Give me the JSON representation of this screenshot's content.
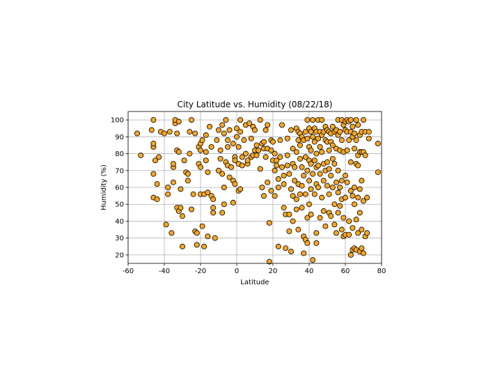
{
  "chart_data": {
    "type": "scatter",
    "title": "City Latitude vs. Humidity (08/22/18)",
    "xlabel": "Latitude",
    "ylabel": "Humidity (%)",
    "xlim": [
      -60,
      80
    ],
    "ylim": [
      15,
      105
    ],
    "xticks": [
      -60,
      -40,
      -20,
      0,
      20,
      40,
      60,
      80
    ],
    "yticks": [
      20,
      30,
      40,
      50,
      60,
      70,
      80,
      90,
      100
    ],
    "grid": true,
    "marker_color": "#f5a623",
    "marker_edge_color": "#000000",
    "points": [
      [
        -55,
        92
      ],
      [
        -53,
        79
      ],
      [
        -47,
        94
      ],
      [
        -46,
        100
      ],
      [
        -46,
        84
      ],
      [
        -46,
        86
      ],
      [
        -46,
        68
      ],
      [
        -45,
        76
      ],
      [
        -46,
        54
      ],
      [
        -44,
        62
      ],
      [
        -44,
        53
      ],
      [
        -43,
        78
      ],
      [
        -42,
        93
      ],
      [
        -40,
        92
      ],
      [
        -39,
        38
      ],
      [
        -38,
        56
      ],
      [
        -38,
        60
      ],
      [
        -37,
        93
      ],
      [
        -36,
        33
      ],
      [
        -35,
        72
      ],
      [
        -35,
        74
      ],
      [
        -35,
        63
      ],
      [
        -34,
        98
      ],
      [
        -34,
        100
      ],
      [
        -33,
        92
      ],
      [
        -33,
        82
      ],
      [
        -32,
        99
      ],
      [
        -32,
        81
      ],
      [
        -33,
        48
      ],
      [
        -32,
        46
      ],
      [
        -31,
        59
      ],
      [
        -31,
        48
      ],
      [
        -30,
        43
      ],
      [
        -30,
        25
      ],
      [
        -29,
        76
      ],
      [
        -28,
        69
      ],
      [
        -27,
        68
      ],
      [
        -27,
        64
      ],
      [
        -26,
        93
      ],
      [
        -26,
        80
      ],
      [
        -25,
        100
      ],
      [
        -25,
        47
      ],
      [
        -24,
        56
      ],
      [
        -23,
        92
      ],
      [
        -23,
        34
      ],
      [
        -22,
        33
      ],
      [
        -22,
        26
      ],
      [
        -21,
        84
      ],
      [
        -21,
        74
      ],
      [
        -20,
        86
      ],
      [
        -20,
        82
      ],
      [
        -20,
        72
      ],
      [
        -20,
        56
      ],
      [
        -19,
        88
      ],
      [
        -19,
        37
      ],
      [
        -18,
        25
      ],
      [
        -18,
        56
      ],
      [
        -17,
        91
      ],
      [
        -17,
        81
      ],
      [
        -17,
        76
      ],
      [
        -16,
        69
      ],
      [
        -16,
        57
      ],
      [
        -16,
        31
      ],
      [
        -15,
        96
      ],
      [
        -14,
        84
      ],
      [
        -14,
        55
      ],
      [
        -13,
        53
      ],
      [
        -13,
        48
      ],
      [
        -13,
        45
      ],
      [
        -12,
        30
      ],
      [
        -11,
        88
      ],
      [
        -10,
        94
      ],
      [
        -10,
        70
      ],
      [
        -9,
        82
      ],
      [
        -9,
        77
      ],
      [
        -8,
        45
      ],
      [
        -8,
        97
      ],
      [
        -8,
        68
      ],
      [
        -7,
        92
      ],
      [
        -7,
        50
      ],
      [
        -7,
        60
      ],
      [
        -6,
        100
      ],
      [
        -6,
        75
      ],
      [
        -5,
        88
      ],
      [
        -5,
        84
      ],
      [
        -5,
        73
      ],
      [
        -4,
        94
      ],
      [
        -4,
        66
      ],
      [
        -3,
        72
      ],
      [
        -2,
        86
      ],
      [
        -2,
        64
      ],
      [
        -2,
        51
      ],
      [
        -1,
        78
      ],
      [
        -1,
        76
      ],
      [
        -1,
        62
      ],
      [
        0,
        95
      ],
      [
        0,
        90
      ],
      [
        1,
        84
      ],
      [
        1,
        74
      ],
      [
        1,
        58
      ],
      [
        2,
        100
      ],
      [
        2,
        93
      ],
      [
        2,
        59
      ],
      [
        3,
        78
      ],
      [
        3,
        73
      ],
      [
        4,
        88
      ],
      [
        5,
        97
      ],
      [
        5,
        80
      ],
      [
        6,
        74
      ],
      [
        6,
        76
      ],
      [
        7,
        98
      ],
      [
        8,
        89
      ],
      [
        8,
        78
      ],
      [
        9,
        96
      ],
      [
        9,
        79
      ],
      [
        10,
        94
      ],
      [
        10,
        82
      ],
      [
        11,
        85
      ],
      [
        11,
        79
      ],
      [
        12,
        82
      ],
      [
        13,
        100
      ],
      [
        13,
        71
      ],
      [
        14,
        86
      ],
      [
        14,
        60
      ],
      [
        15,
        87
      ],
      [
        15,
        83
      ],
      [
        15,
        55
      ],
      [
        16,
        94
      ],
      [
        16,
        78
      ],
      [
        17,
        97
      ],
      [
        17,
        83
      ],
      [
        17,
        63
      ],
      [
        18,
        39
      ],
      [
        18,
        16
      ],
      [
        19,
        82
      ],
      [
        19,
        88
      ],
      [
        19,
        58
      ],
      [
        20,
        87
      ],
      [
        20,
        76
      ],
      [
        21,
        80
      ],
      [
        21,
        70
      ],
      [
        21,
        55
      ],
      [
        22,
        76
      ],
      [
        22,
        73
      ],
      [
        23,
        65
      ],
      [
        23,
        60
      ],
      [
        23,
        25
      ],
      [
        24,
        78
      ],
      [
        24,
        88
      ],
      [
        25,
        97
      ],
      [
        25,
        72
      ],
      [
        26,
        67
      ],
      [
        26,
        62
      ],
      [
        26,
        48
      ],
      [
        27,
        44
      ],
      [
        27,
        24
      ],
      [
        28,
        89
      ],
      [
        28,
        79
      ],
      [
        28,
        73
      ],
      [
        29,
        68
      ],
      [
        29,
        44
      ],
      [
        29,
        34
      ],
      [
        30,
        94
      ],
      [
        30,
        59
      ],
      [
        30,
        22
      ],
      [
        31,
        83
      ],
      [
        31,
        74
      ],
      [
        31,
        55
      ],
      [
        31,
        40
      ],
      [
        32,
        72
      ],
      [
        32,
        64
      ],
      [
        33,
        95
      ],
      [
        33,
        81
      ],
      [
        33,
        53
      ],
      [
        33,
        47
      ],
      [
        34,
        93
      ],
      [
        34,
        88
      ],
      [
        34,
        62
      ],
      [
        34,
        35
      ],
      [
        35,
        92
      ],
      [
        35,
        85
      ],
      [
        35,
        77
      ],
      [
        35,
        56
      ],
      [
        36,
        90
      ],
      [
        36,
        72
      ],
      [
        36,
        61
      ],
      [
        36,
        48
      ],
      [
        37,
        88
      ],
      [
        37,
        67
      ],
      [
        37,
        31
      ],
      [
        37,
        21
      ],
      [
        38,
        93
      ],
      [
        38,
        78
      ],
      [
        38,
        56
      ],
      [
        38,
        29
      ],
      [
        39,
        100
      ],
      [
        39,
        89
      ],
      [
        39,
        70
      ],
      [
        39,
        42
      ],
      [
        39,
        27
      ],
      [
        40,
        95
      ],
      [
        40,
        84
      ],
      [
        40,
        76
      ],
      [
        40,
        64
      ],
      [
        40,
        50
      ],
      [
        41,
        93
      ],
      [
        41,
        82
      ],
      [
        41,
        74
      ],
      [
        41,
        59
      ],
      [
        41,
        44
      ],
      [
        42,
        100
      ],
      [
        42,
        90
      ],
      [
        42,
        68
      ],
      [
        42,
        17
      ],
      [
        43,
        95
      ],
      [
        43,
        87
      ],
      [
        43,
        76
      ],
      [
        43,
        56
      ],
      [
        44,
        93
      ],
      [
        44,
        80
      ],
      [
        44,
        72
      ],
      [
        44,
        62
      ],
      [
        44,
        33
      ],
      [
        44,
        27
      ],
      [
        45,
        100
      ],
      [
        45,
        89
      ],
      [
        45,
        73
      ],
      [
        45,
        60
      ],
      [
        46,
        93
      ],
      [
        46,
        84
      ],
      [
        46,
        68
      ],
      [
        46,
        42
      ],
      [
        47,
        100
      ],
      [
        47,
        91
      ],
      [
        47,
        81
      ],
      [
        47,
        54
      ],
      [
        48,
        93
      ],
      [
        48,
        74
      ],
      [
        48,
        64
      ],
      [
        48,
        46
      ],
      [
        49,
        96
      ],
      [
        49,
        88
      ],
      [
        49,
        70
      ],
      [
        49,
        37
      ],
      [
        50,
        94
      ],
      [
        50,
        87
      ],
      [
        50,
        75
      ],
      [
        50,
        61
      ],
      [
        51,
        93
      ],
      [
        51,
        82
      ],
      [
        51,
        71
      ],
      [
        51,
        56
      ],
      [
        51,
        45
      ],
      [
        52,
        92
      ],
      [
        52,
        87
      ],
      [
        52,
        67
      ],
      [
        52,
        43
      ],
      [
        53,
        96
      ],
      [
        53,
        85
      ],
      [
        53,
        77
      ],
      [
        53,
        60
      ],
      [
        54,
        93
      ],
      [
        54,
        74
      ],
      [
        54,
        50
      ],
      [
        54,
        38
      ],
      [
        55,
        94
      ],
      [
        55,
        83
      ],
      [
        55,
        63
      ],
      [
        55,
        33
      ],
      [
        56,
        100
      ],
      [
        56,
        91
      ],
      [
        56,
        70
      ],
      [
        56,
        57
      ],
      [
        56,
        45
      ],
      [
        57,
        93
      ],
      [
        57,
        82
      ],
      [
        57,
        60
      ],
      [
        57,
        49
      ],
      [
        58,
        100
      ],
      [
        58,
        88
      ],
      [
        58,
        64
      ],
      [
        58,
        53
      ],
      [
        58,
        35
      ],
      [
        59,
        97
      ],
      [
        59,
        81
      ],
      [
        59,
        42
      ],
      [
        59,
        31
      ],
      [
        60,
        99
      ],
      [
        60,
        94
      ],
      [
        60,
        67
      ],
      [
        60,
        54
      ],
      [
        60,
        32
      ],
      [
        61,
        100
      ],
      [
        61,
        93
      ],
      [
        61,
        82
      ],
      [
        61,
        63
      ],
      [
        62,
        99
      ],
      [
        62,
        88
      ],
      [
        62,
        40
      ],
      [
        62,
        32
      ],
      [
        63,
        100
      ],
      [
        63,
        93
      ],
      [
        63,
        75
      ],
      [
        63,
        58
      ],
      [
        63,
        20
      ],
      [
        64,
        96
      ],
      [
        64,
        90
      ],
      [
        64,
        55
      ],
      [
        64,
        36
      ],
      [
        64,
        23
      ],
      [
        65,
        92
      ],
      [
        65,
        83
      ],
      [
        65,
        60
      ],
      [
        65,
        50
      ],
      [
        65,
        24
      ],
      [
        66,
        100
      ],
      [
        66,
        88
      ],
      [
        66,
        74
      ],
      [
        66,
        41
      ],
      [
        66,
        23
      ],
      [
        67,
        97
      ],
      [
        67,
        79
      ],
      [
        67,
        73
      ],
      [
        67,
        54
      ],
      [
        67,
        33
      ],
      [
        68,
        91
      ],
      [
        68,
        81
      ],
      [
        68,
        59
      ],
      [
        68,
        45
      ],
      [
        68,
        22
      ],
      [
        69,
        93
      ],
      [
        69,
        81
      ],
      [
        69,
        64
      ],
      [
        69,
        35
      ],
      [
        69,
        24
      ],
      [
        70,
        100
      ],
      [
        70,
        81
      ],
      [
        70,
        52
      ],
      [
        70,
        21
      ],
      [
        71,
        93
      ],
      [
        71,
        79
      ],
      [
        71,
        31
      ],
      [
        72,
        54
      ],
      [
        72,
        33
      ],
      [
        73,
        93
      ],
      [
        73,
        89
      ],
      [
        78,
        86
      ],
      [
        78,
        69
      ]
    ]
  }
}
